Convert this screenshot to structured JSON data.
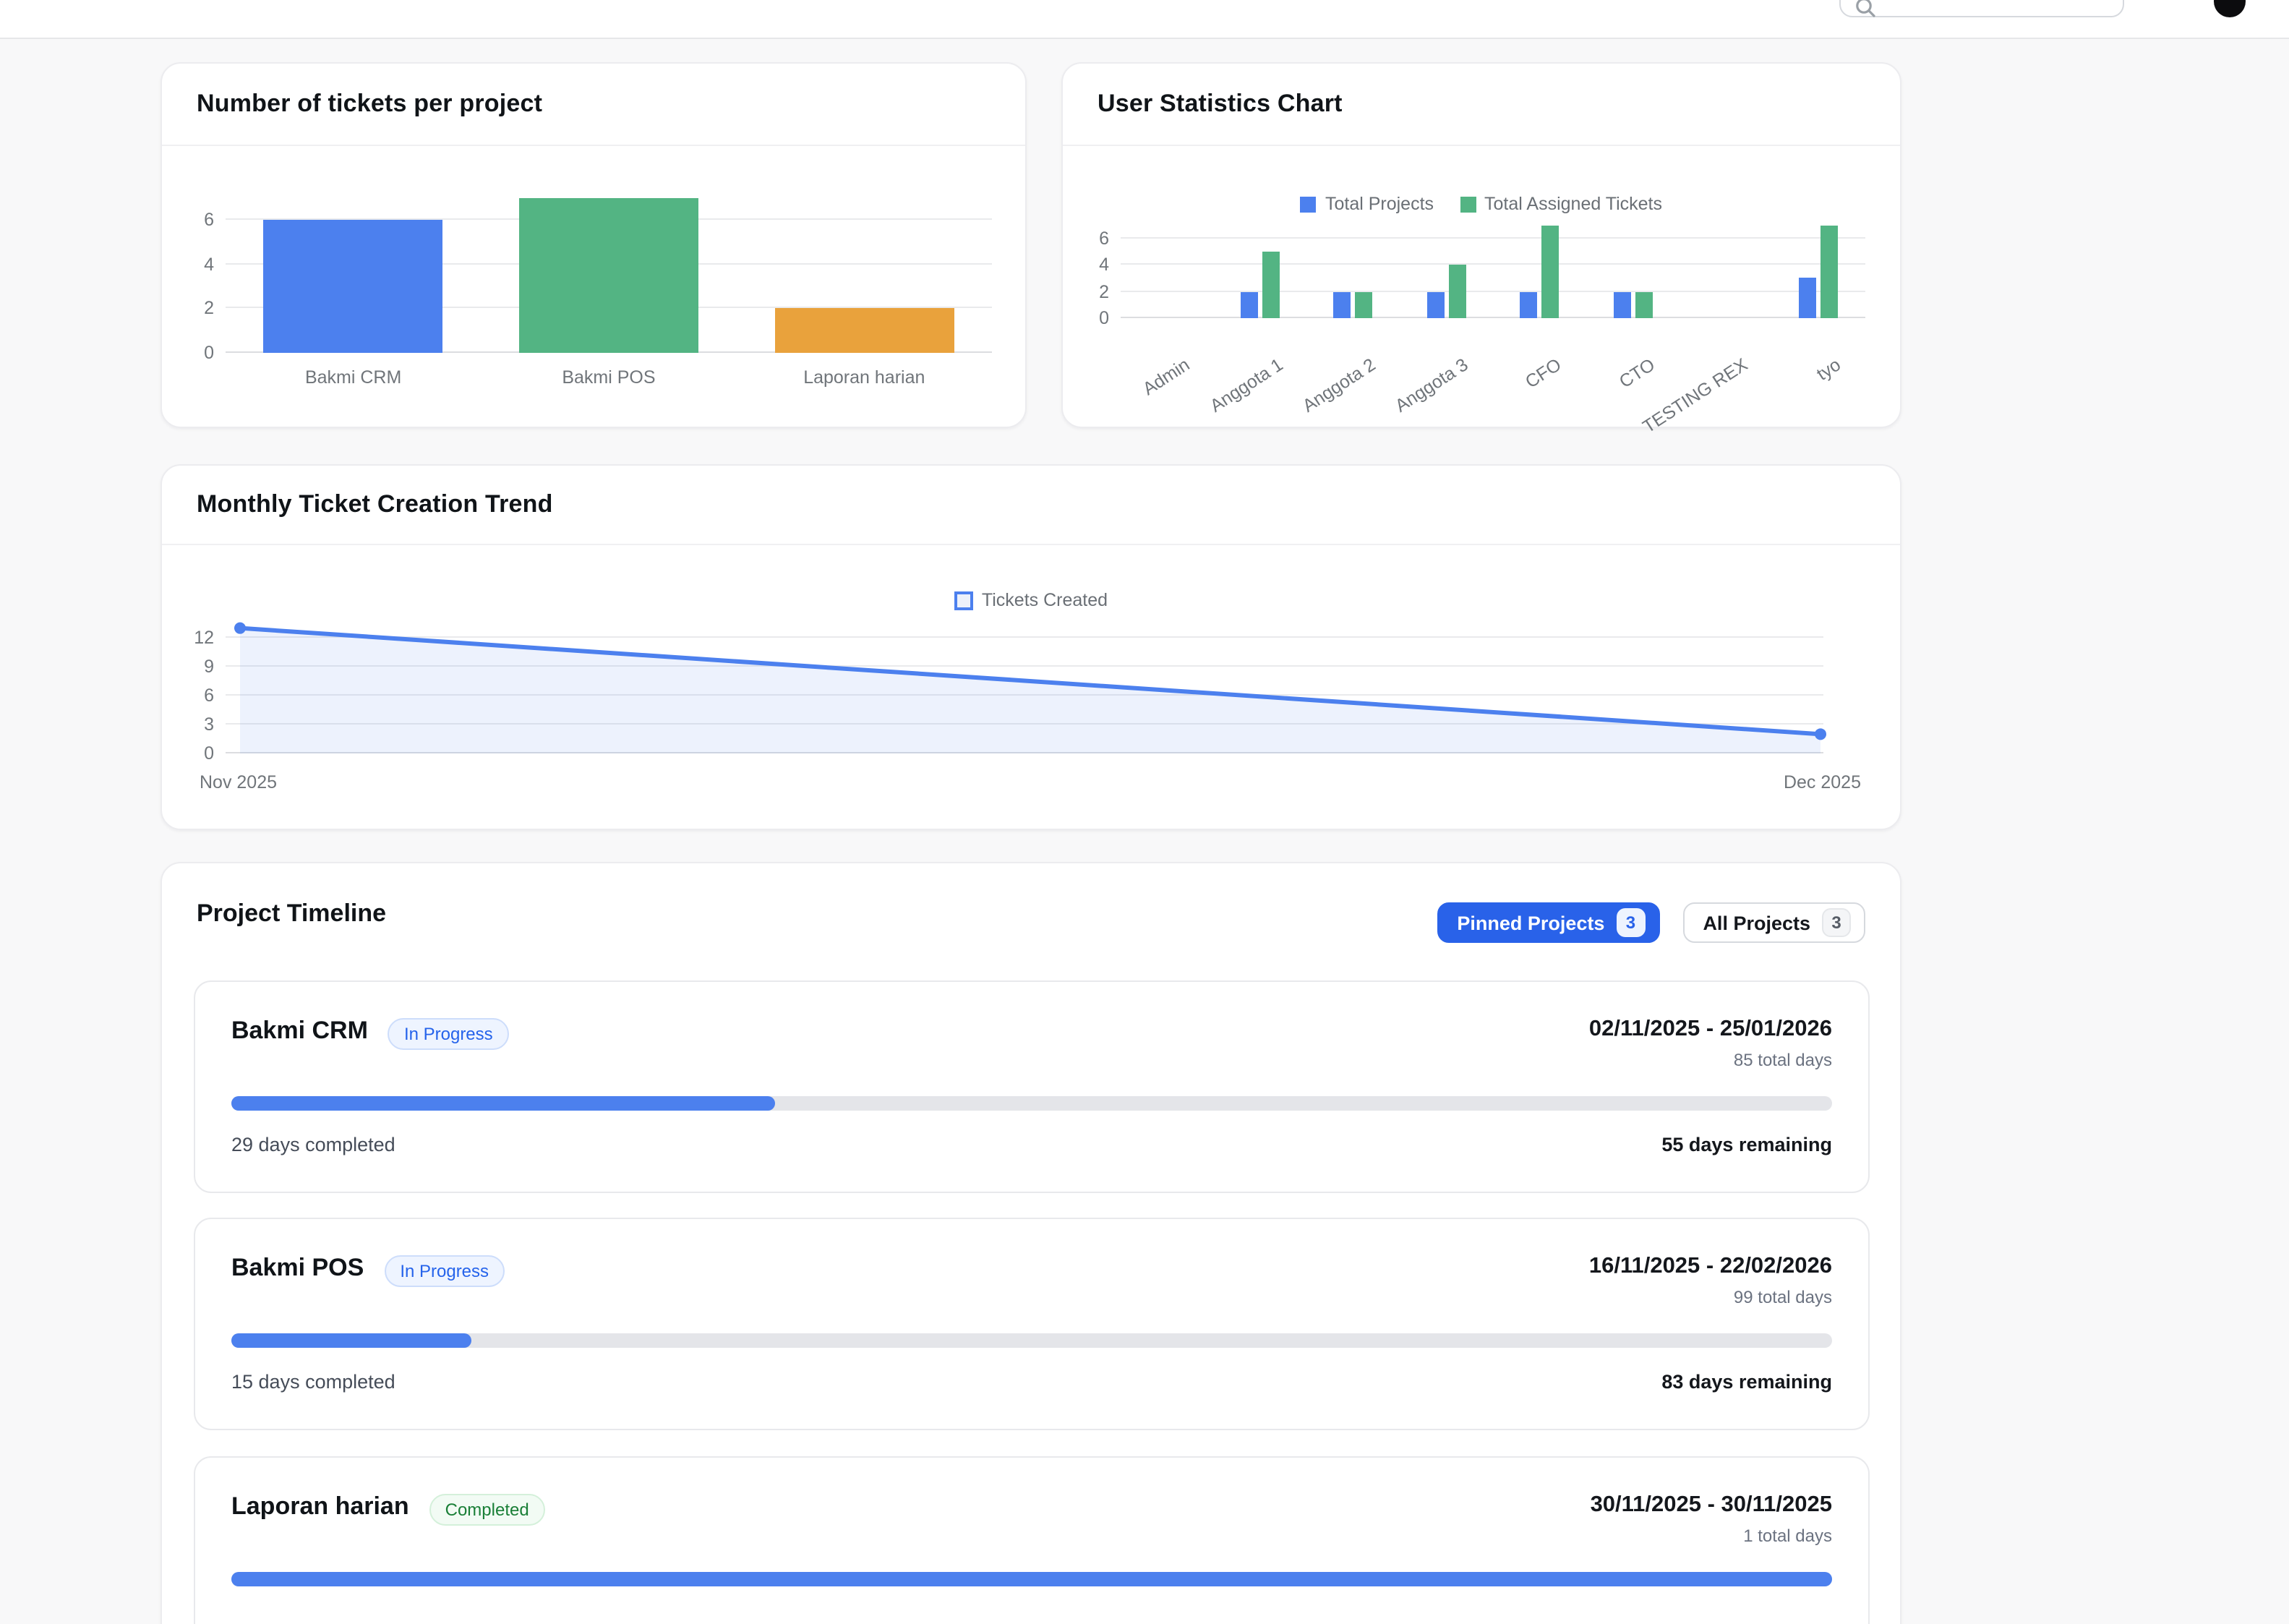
{
  "topbar": {
    "search_icon": "magnifier",
    "avatar_icon": "user-avatar-circle"
  },
  "colors": {
    "accent_blue": "#2962e9",
    "chart_blue": "#4c80ee",
    "chart_green": "#53b483",
    "chart_orange": "#e9a23c",
    "progress_fill": "#4c80ee",
    "progress_track": "#e4e5e9"
  },
  "chart_data": [
    {
      "type": "bar",
      "title": "Number of tickets per project",
      "categories": [
        "Bakmi CRM",
        "Bakmi POS",
        "Laporan harian"
      ],
      "values": [
        6,
        7,
        2
      ],
      "colors": [
        "#4c80ee",
        "#53b483",
        "#e9a23c"
      ],
      "yticks": [
        0,
        2,
        4,
        6
      ],
      "ylim": [
        0,
        7.3
      ],
      "grid": true,
      "legend": "none"
    },
    {
      "type": "bar",
      "title": "User Statistics Chart",
      "categories": [
        "Admin",
        "Anggota 1",
        "Anggota 2",
        "Anggota 3",
        "CFO",
        "CTO",
        "TESTING REX",
        "tyo"
      ],
      "series": [
        {
          "name": "Total Projects",
          "color": "#4c80ee",
          "values": [
            0,
            2,
            2,
            2,
            2,
            2,
            0,
            3
          ]
        },
        {
          "name": "Total Assigned Tickets",
          "color": "#53b483",
          "values": [
            0,
            5,
            2,
            4,
            7,
            2,
            0,
            7
          ]
        }
      ],
      "yticks": [
        0,
        2,
        4,
        6
      ],
      "ylim": [
        0,
        7.3
      ],
      "grid": true,
      "legend": "top",
      "xlabel_rotation": -33
    },
    {
      "type": "area",
      "title": "Monthly Ticket Creation Trend",
      "x": [
        "Nov 2025",
        "Dec 2025"
      ],
      "series": [
        {
          "name": "Tickets Created",
          "color": "#4c80ee",
          "values": [
            13,
            2
          ]
        }
      ],
      "yticks": [
        0,
        3,
        6,
        9,
        12
      ],
      "ylim": [
        0,
        13.2
      ],
      "grid": true,
      "legend": "top"
    }
  ],
  "timeline": {
    "title": "Project Timeline",
    "filters": [
      {
        "label": "Pinned Projects",
        "count": "3",
        "active": true
      },
      {
        "label": "All Projects",
        "count": "3",
        "active": false
      }
    ],
    "projects": [
      {
        "name": "Bakmi CRM",
        "status": "In Progress",
        "status_type": "in-progress",
        "date_range": "02/11/2025 - 25/01/2026",
        "total": "85 total days",
        "completed": "29 days completed",
        "remaining": "55 days remaining",
        "progress_pct": 34
      },
      {
        "name": "Bakmi POS",
        "status": "In Progress",
        "status_type": "in-progress",
        "date_range": "16/11/2025 - 22/02/2026",
        "total": "99 total days",
        "completed": "15 days completed",
        "remaining": "83 days remaining",
        "progress_pct": 15
      },
      {
        "name": "Laporan harian",
        "status": "Completed",
        "status_type": "completed",
        "date_range": "30/11/2025 - 30/11/2025",
        "total": "1 total days",
        "progress_pct": 100
      }
    ]
  }
}
